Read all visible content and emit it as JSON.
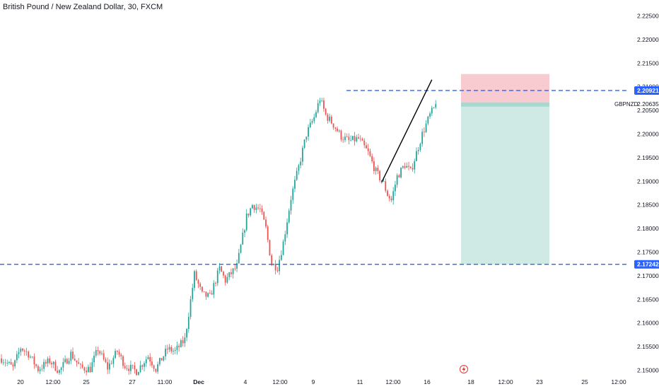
{
  "header": {
    "title": "British Pound / New Zealand Dollar, 30, FXCM"
  },
  "chart_data": {
    "type": "candlestick",
    "symbol": "GBPNZD",
    "interval": "30",
    "source": "FXCM",
    "ylim": [
      2.1495,
      2.2275
    ],
    "y_ticks": [
      "2.15000",
      "2.15500",
      "2.16000",
      "2.16500",
      "2.17000",
      "2.17500",
      "2.18000",
      "2.18500",
      "2.19000",
      "2.19500",
      "2.20000",
      "2.20500",
      "2.21000",
      "2.21500",
      "2.22000",
      "2.22500"
    ],
    "x_ticks": [
      "20",
      "12:00",
      "25",
      "27",
      "11:00",
      "Dec",
      "4",
      "12:00",
      "9",
      "11",
      "12:00",
      "16",
      "18",
      "12:00",
      "23",
      "25",
      "12:00"
    ],
    "price_path": [
      [
        0,
        2.1525
      ],
      [
        6,
        2.1505
      ],
      [
        10,
        2.1548
      ],
      [
        14,
        2.1535
      ],
      [
        19,
        2.1502
      ],
      [
        25,
        2.152
      ],
      [
        30,
        2.1498
      ],
      [
        36,
        2.1535
      ],
      [
        41,
        2.1505
      ],
      [
        46,
        2.1503
      ],
      [
        50,
        2.1545
      ],
      [
        55,
        2.1505
      ],
      [
        60,
        2.154
      ],
      [
        64,
        2.151
      ],
      [
        70,
        2.1498
      ],
      [
        76,
        2.153
      ],
      [
        80,
        2.1503
      ],
      [
        86,
        2.1545
      ],
      [
        90,
        2.154
      ],
      [
        95,
        2.1565
      ],
      [
        100,
        2.1703
      ],
      [
        104,
        2.166
      ],
      [
        108,
        2.1655
      ],
      [
        113,
        2.1715
      ],
      [
        116,
        2.169
      ],
      [
        118,
        2.17
      ],
      [
        122,
        2.172
      ],
      [
        127,
        2.1825
      ],
      [
        130,
        2.185
      ],
      [
        134,
        2.184
      ],
      [
        137,
        2.18
      ],
      [
        140,
        2.1725
      ],
      [
        143,
        2.1718
      ],
      [
        146,
        2.177
      ],
      [
        150,
        2.1865
      ],
      [
        154,
        2.193
      ],
      [
        158,
        2.2
      ],
      [
        162,
        2.2035
      ],
      [
        165,
        2.2075
      ],
      [
        168,
        2.204
      ],
      [
        172,
        2.202
      ],
      [
        176,
        2.1995
      ],
      [
        180,
        2.1985
      ],
      [
        185,
        2.199
      ],
      [
        190,
        2.196
      ],
      [
        194,
        2.192
      ],
      [
        198,
        2.1895
      ],
      [
        200,
        2.1872
      ],
      [
        202,
        2.186
      ],
      [
        205,
        2.191
      ],
      [
        209,
        2.1935
      ],
      [
        212,
        2.192
      ],
      [
        215,
        2.196
      ],
      [
        218,
        2.2
      ],
      [
        222,
        2.204
      ],
      [
        225,
        2.206
      ]
    ],
    "horizontal_lines": [
      {
        "price": 2.20921,
        "label": "2.20921",
        "style": "dashed",
        "color": "#2962ff"
      },
      {
        "price": 2.17242,
        "label": "2.17242",
        "style": "dashed",
        "color": "#2962ff"
      }
    ],
    "position_tool": {
      "type": "short",
      "entry": 2.2067,
      "stop": 2.2127,
      "target": 2.17242,
      "stop_zone_color": "#f7cbcf",
      "profit_zone_color": "#cfe9e4",
      "entry_band_color": "#a8d8cf"
    },
    "trend_line": {
      "from": [
        2.1898,
        197
      ],
      "to": [
        2.2115,
        223
      ],
      "color": "#000000"
    },
    "last_price": {
      "value": "2.20635",
      "symbol_label": "GBPNZD"
    }
  }
}
